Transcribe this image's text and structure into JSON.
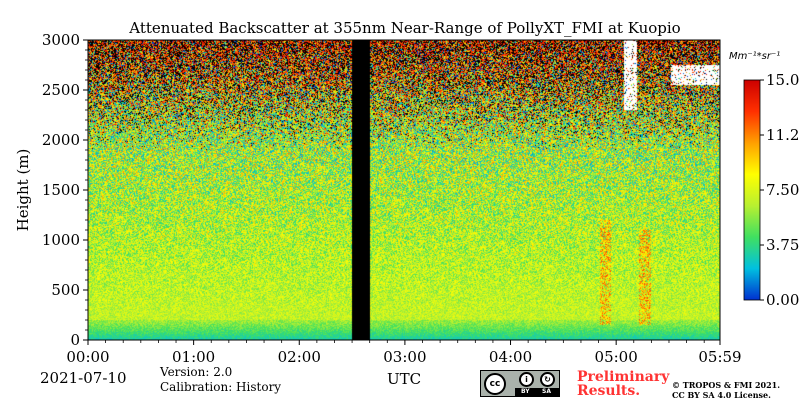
{
  "chart_data": {
    "type": "heatmap",
    "title": "Attenuated Backscatter at 355nm Near-Range of PollyXT_FMI at Kuopio",
    "xlabel": "UTC",
    "ylabel": "Height (m)",
    "x_ticks": [
      "00:00",
      "01:00",
      "02:00",
      "03:00",
      "04:00",
      "05:00",
      "05:59"
    ],
    "x_tick_hours": [
      0,
      1,
      2,
      3,
      4,
      5,
      5.983
    ],
    "xlim_hours": [
      0,
      5.983
    ],
    "y_ticks": [
      0,
      500,
      1000,
      1500,
      2000,
      2500,
      3000
    ],
    "ylim": [
      0,
      3000
    ],
    "colorbar": {
      "label": "Mm⁻¹*sr⁻¹",
      "ticks": [
        "0.00",
        "3.75",
        "7.50",
        "11.25",
        "15.00"
      ],
      "tick_values": [
        0,
        3.75,
        7.5,
        11.25,
        15
      ],
      "range": [
        0,
        15
      ],
      "colormap": [
        "#0030d0",
        "#00c0e0",
        "#40e060",
        "#b8f030",
        "#ffff00",
        "#ffa000",
        "#ff3000",
        "#cc0000"
      ]
    },
    "no_data_hours": [
      2.5,
      2.667
    ],
    "cloud_layers": [
      {
        "start_hour": 5.07,
        "end_hour": 5.2,
        "base_m": 2300,
        "top_m": 3000
      },
      {
        "start_hour": 5.52,
        "end_hour": 5.983,
        "base_m": 2550,
        "top_m": 2750
      }
    ],
    "rain_streaks": [
      {
        "start_hour": 4.85,
        "end_hour": 4.95,
        "top_m": 1200
      },
      {
        "start_hour": 5.22,
        "end_hour": 5.33,
        "top_m": 1100
      }
    ]
  },
  "footer": {
    "date": "2021-07-10",
    "version": "Version: 2.0",
    "calibration": "Calibration: History",
    "preliminary_line1": "Preliminary",
    "preliminary_line2": "Results.",
    "copyright_line1": "© TROPOS & FMI 2021.",
    "copyright_line2": "CC BY SA 4.0 License.",
    "license_icon": "cc-by-sa-icon"
  }
}
